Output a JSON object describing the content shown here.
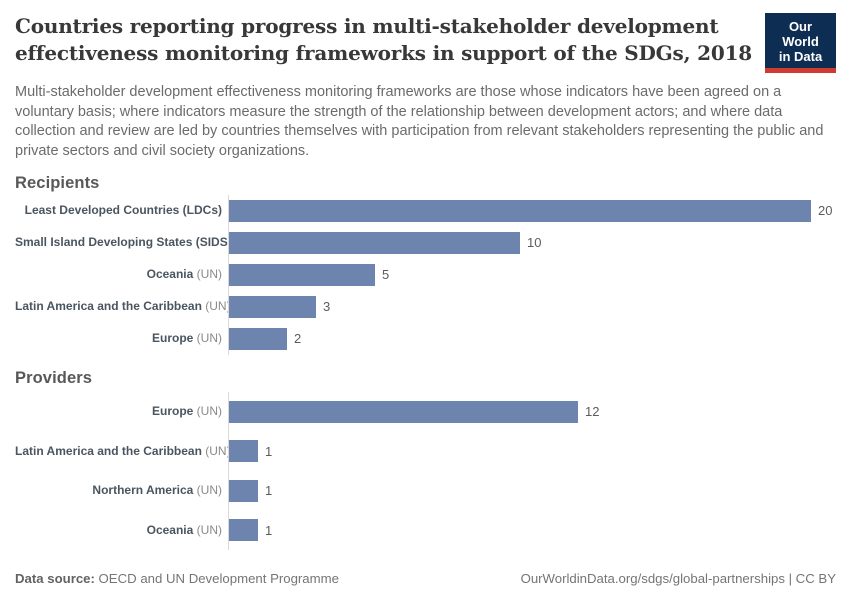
{
  "header": {
    "title": "Countries reporting progress in multi-stakeholder development effectiveness monitoring frameworks in support of the SDGs, 2018",
    "logo": {
      "line1": "Our World",
      "line2": "in Data"
    }
  },
  "subtitle": "Multi-stakeholder development effectiveness monitoring frameworks are those whose indicators have been agreed on a voluntary basis; where indicators measure the strength of the relationship between development actors; and where data collection and review are led by countries themselves with participation from relevant stakeholders representing the public and private sectors and civil society organizations.",
  "chart_data": [
    {
      "type": "bar",
      "orientation": "horizontal",
      "title": "Recipients",
      "categories": [
        "Least Developed Countries (LDCs)",
        "Small Island Developing States (SIDS)",
        "Oceania (UN)",
        "Latin America and the Caribbean (UN)",
        "Europe (UN)"
      ],
      "values": [
        20,
        10,
        5,
        3,
        2
      ],
      "xlim": [
        0,
        20
      ],
      "grid": false,
      "value_labels": true
    },
    {
      "type": "bar",
      "orientation": "horizontal",
      "title": "Providers",
      "categories": [
        "Europe (UN)",
        "Latin America and the Caribbean (UN)",
        "Northern America (UN)",
        "Oceania (UN)"
      ],
      "values": [
        12,
        1,
        1,
        1
      ],
      "xlim": [
        0,
        20
      ],
      "grid": false,
      "value_labels": true
    }
  ],
  "colors": {
    "bar": "#6d84ae",
    "logo_bg": "#0d2d52",
    "logo_red": "#cf3a31",
    "axis_line": "#d9d9d9"
  },
  "footer": {
    "source_label": "Data source:",
    "source_value": " OECD and UN Development Programme",
    "right": "OurWorldinData.org/sdgs/global-partnerships | CC BY"
  }
}
